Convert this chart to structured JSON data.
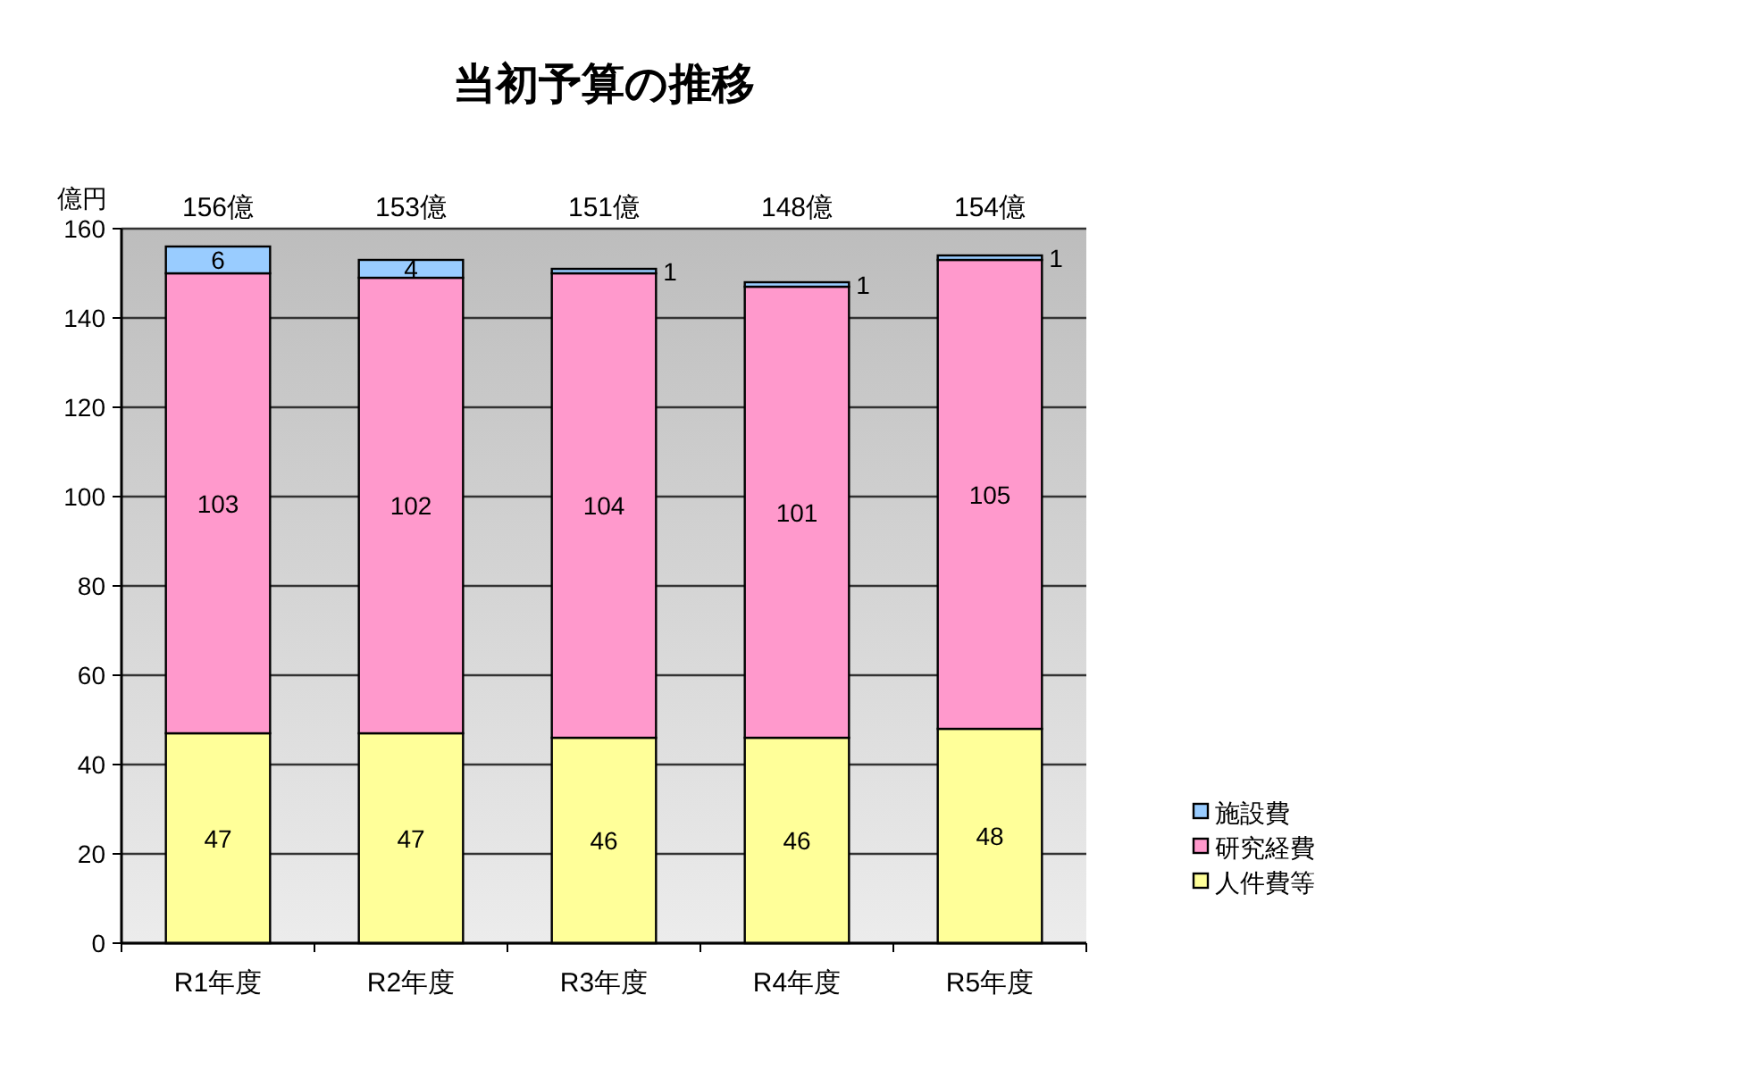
{
  "chart_data": {
    "type": "bar",
    "title": "当初予算の推移",
    "ylabel": "億円",
    "categories": [
      "R1年度",
      "R2年度",
      "R3年度",
      "R4年度",
      "R5年度"
    ],
    "series": [
      {
        "name": "人件費等",
        "color": "#ffff99",
        "values": [
          47,
          47,
          46,
          46,
          48
        ]
      },
      {
        "name": "研究経費",
        "color": "#ff99cc",
        "values": [
          103,
          102,
          104,
          101,
          105
        ]
      },
      {
        "name": "施設費",
        "color": "#99ccff",
        "values": [
          6,
          4,
          1,
          1,
          1
        ]
      }
    ],
    "stacked": true,
    "ylim": [
      0,
      160
    ],
    "yticks": [
      0,
      20,
      40,
      60,
      80,
      100,
      120,
      140,
      160
    ],
    "grid": "y",
    "legend": "right",
    "data_labels": true,
    "totals": [
      "156億",
      "153億",
      "151億",
      "148億",
      "154億"
    ]
  }
}
